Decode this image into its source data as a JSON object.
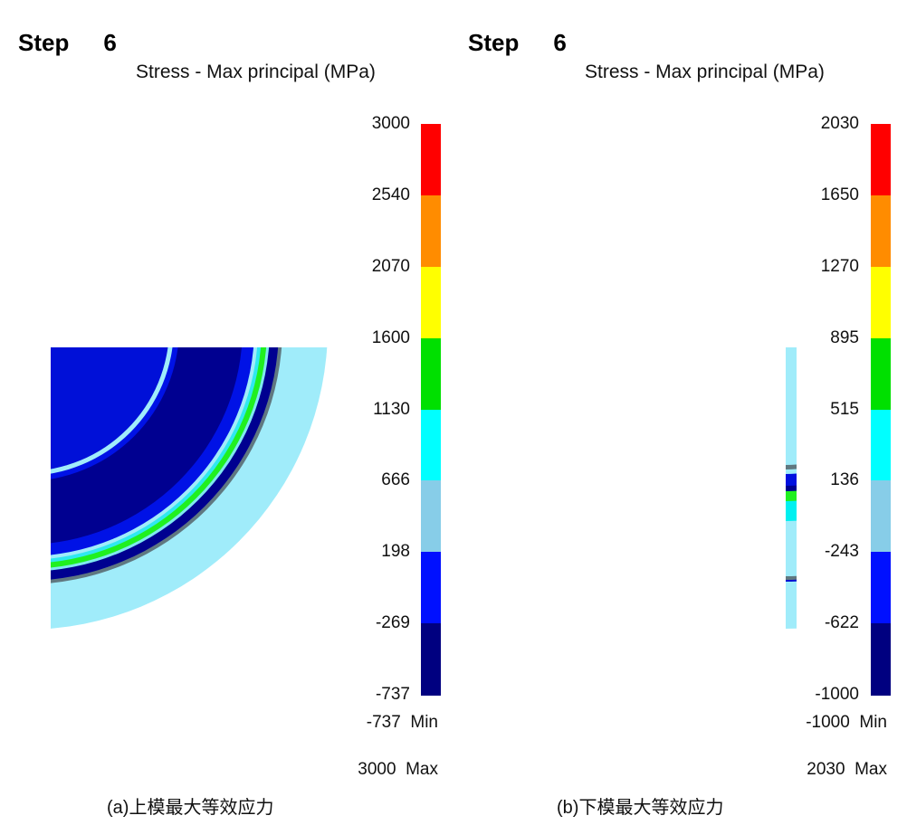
{
  "panels": [
    {
      "step_label": "Step",
      "step_value": "6",
      "title": "Stress - Max principal (MPa)",
      "ticks": [
        "3000",
        "2540",
        "2070",
        "1600",
        "1130",
        "666",
        "198",
        "-269",
        "-737"
      ],
      "min_value": "-737",
      "min_label": "Min",
      "max_value": "3000",
      "max_label": "Max",
      "caption": "(a)上模最大等效应力"
    },
    {
      "step_label": "Step",
      "step_value": "6",
      "title": "Stress - Max principal (MPa)",
      "ticks": [
        "2030",
        "1650",
        "1270",
        "895",
        "515",
        "136",
        "-243",
        "-622",
        "-1000"
      ],
      "min_value": "-1000",
      "min_label": "Min",
      "max_value": "2030",
      "max_label": "Max",
      "caption": "(b)下模最大等效应力"
    }
  ],
  "colorbar_colors": [
    "#ff0000",
    "#ff8c00",
    "#ffff00",
    "#00e000",
    "#00ffff",
    "#87cde8",
    "#0010ff",
    "#000080"
  ]
}
